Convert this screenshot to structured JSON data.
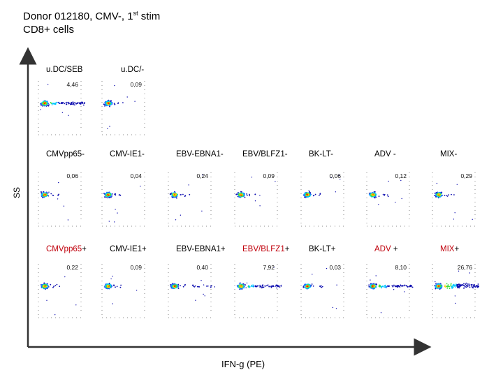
{
  "header": {
    "line1_pre": "Donor 012180, CMV-, 1",
    "line1_sup": "st",
    "line1_post": " stim",
    "line2": "CD8+ cells"
  },
  "axes": {
    "y_label": "SS",
    "x_label": "IFN-g (PE)"
  },
  "rows": [
    {
      "id": "control",
      "panels": [
        {
          "label": "u.DC/SEB",
          "pct": "4,46",
          "pos": "high"
        },
        {
          "label": "u.DC/-",
          "pct": "0,09",
          "pos": "none"
        }
      ]
    },
    {
      "id": "negative",
      "panels": [
        {
          "label": "CMVpp65-",
          "pct": "0,06",
          "pos": "none"
        },
        {
          "label": "CMV-IE1-",
          "pct": "0,04",
          "pos": "none"
        },
        {
          "label": "EBV-EBNA1-",
          "pct": "0,24",
          "pos": "none"
        },
        {
          "label": "EBV/BLFZ1-",
          "pct": "0,09",
          "pos": "none"
        },
        {
          "label": "BK-LT-",
          "pct": "0,06",
          "pos": "none"
        },
        {
          "label": "ADV -",
          "pct": "0,12",
          "pos": "none"
        },
        {
          "label": "MIX-",
          "pct": "0,29",
          "pos": "none"
        }
      ]
    },
    {
      "id": "positive",
      "panels": [
        {
          "label_red": "CMVpp65",
          "label_rest": "+",
          "pct": "0,22",
          "pos": "none"
        },
        {
          "label_red": "",
          "label_rest": "CMV-IE1+",
          "pct": "0,09",
          "pos": "none"
        },
        {
          "label_red": "",
          "label_rest": "EBV-EBNA1+",
          "pct": "0,40",
          "pos": "low"
        },
        {
          "label_red": "EBV/BLFZ1",
          "label_rest": "+",
          "pct": "7,92",
          "pos": "high"
        },
        {
          "label_red": "",
          "label_rest": "BK-LT+",
          "pct": "0,03",
          "pos": "none"
        },
        {
          "label_red": "ADV",
          "label_rest": " +",
          "pct": "8,10",
          "pos": "high"
        },
        {
          "label_red": "MIX",
          "label_rest": "+",
          "pct": "26,76",
          "pos": "very-high"
        }
      ]
    }
  ],
  "colors": {
    "accent_red": "#c0000b",
    "axis": "#333333",
    "dot_hot": "#ff0000",
    "dot_cool": "#0000cc"
  }
}
